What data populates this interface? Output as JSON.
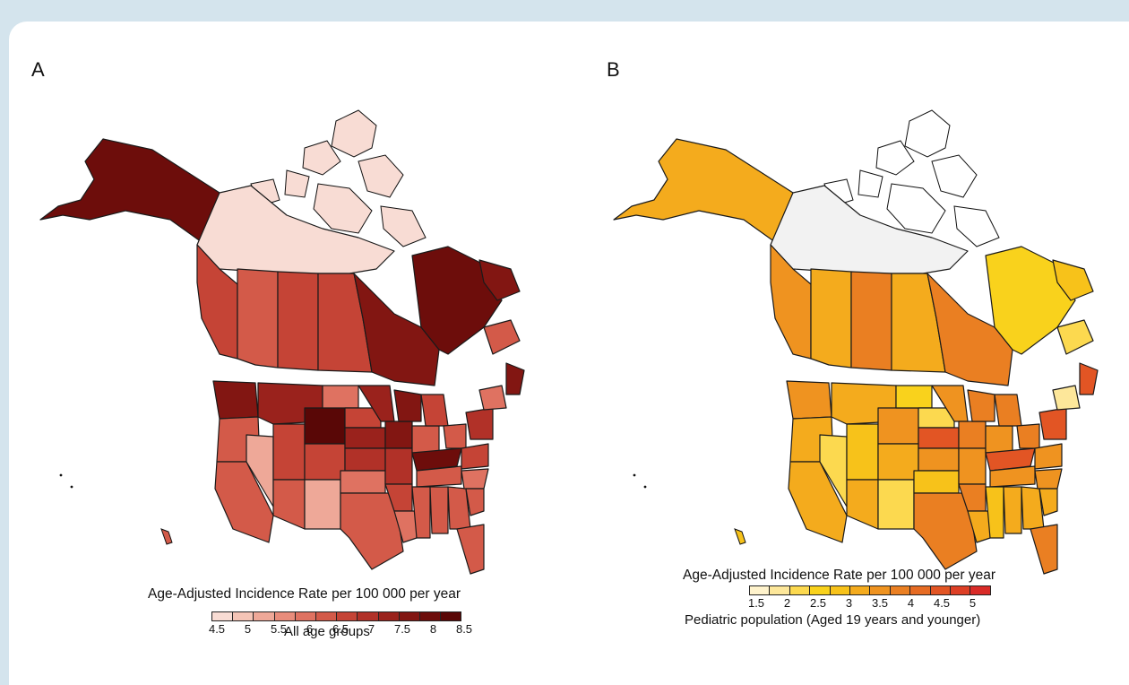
{
  "panel_a": {
    "label": "A",
    "legend_title": "Age-Adjusted Incidence Rate per 100 000 per year",
    "legend_subtitle": "All age groups",
    "ticks": [
      "4.5",
      "5",
      "5.5",
      "6",
      "6.5",
      "7",
      "7.5",
      "8",
      "8.5"
    ],
    "colors": [
      "#f8dcd4",
      "#f4c4b6",
      "#eea898",
      "#e88c7b",
      "#df7261",
      "#d35a49",
      "#c54436",
      "#b13128",
      "#9a221c",
      "#821612",
      "#6d0d0b",
      "#590706"
    ]
  },
  "panel_b": {
    "label": "B",
    "legend_title": "Age-Adjusted Incidence Rate per 100 000 per year",
    "legend_subtitle": "Pediatric population (Aged 19 years and younger)",
    "ticks": [
      "1.5",
      "2",
      "2.5",
      "3",
      "3.5",
      "4",
      "4.5",
      "5"
    ],
    "colors": [
      "#fff3cc",
      "#fde79a",
      "#fcd94f",
      "#f9d21c",
      "#f7c21a",
      "#f4ab1d",
      "#ef9320",
      "#ea7f22",
      "#e66b23",
      "#e25524",
      "#dd3f25",
      "#d92b27"
    ]
  }
}
